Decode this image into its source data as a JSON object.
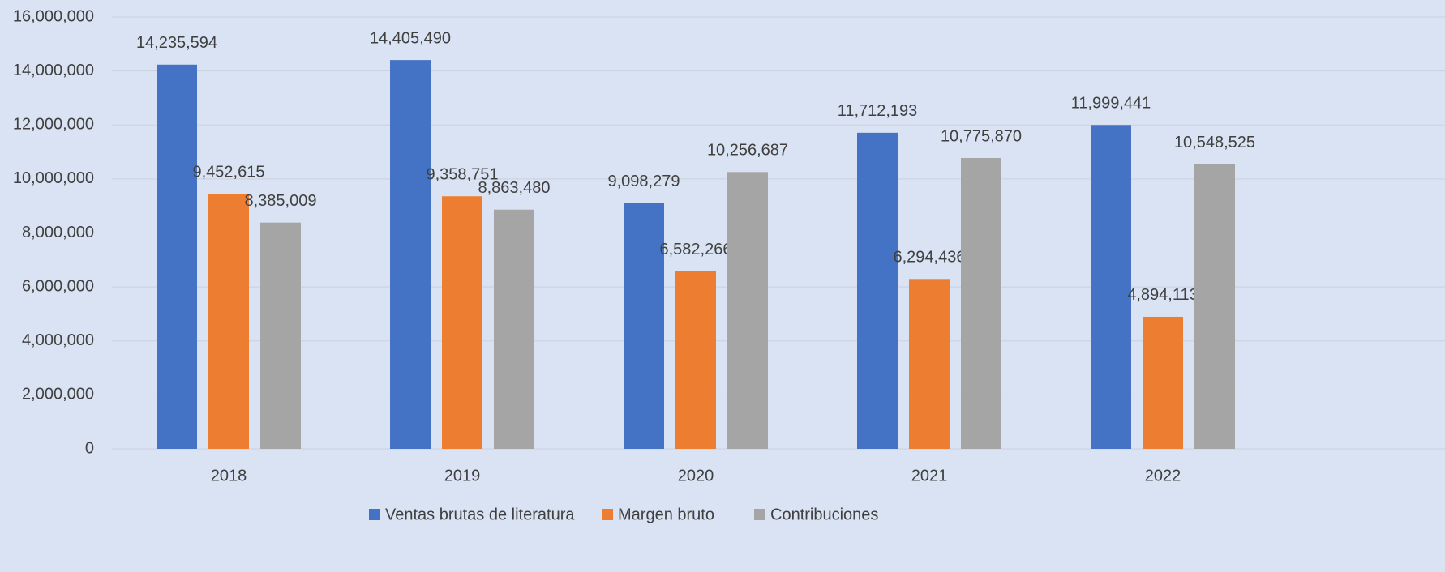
{
  "chart_data": {
    "type": "bar",
    "categories": [
      "2018",
      "2019",
      "2020",
      "2021",
      "2022"
    ],
    "series": [
      {
        "name": "Ventas brutas de literatura",
        "color": "#4472c4",
        "values": [
          14235594,
          14405490,
          9098279,
          11712193,
          11999441
        ],
        "value_labels": [
          "14,235,594",
          "14,405,490",
          "9,098,279",
          "11,712,193",
          "11,999,441"
        ]
      },
      {
        "name": "Margen bruto",
        "color": "#ed7d31",
        "values": [
          9452615,
          9358751,
          6582266,
          6294436,
          4894113
        ],
        "value_labels": [
          "9,452,615",
          "9,358,751",
          "6,582,266",
          "6,294,436",
          "4,894,113"
        ]
      },
      {
        "name": "Contribuciones",
        "color": "#a5a5a5",
        "values": [
          8385009,
          8863480,
          10256687,
          10775870,
          10548525
        ],
        "value_labels": [
          "8,385,009",
          "8,863,480",
          "10,256,687",
          "10,775,870",
          "10,548,525"
        ]
      }
    ],
    "ylim": [
      0,
      16000000
    ],
    "yticks": [
      0,
      {
        "value": 2000000,
        "label": "2,000,000"
      },
      {
        "value": 4000000,
        "label": "4,000,000"
      },
      {
        "value": 6000000,
        "label": "6,000,000"
      },
      {
        "value": 8000000,
        "label": "8,000,000"
      },
      {
        "value": 10000000,
        "label": "10,000,000"
      },
      {
        "value": 12000000,
        "label": "12,000,000"
      },
      {
        "value": 14000000,
        "label": "14,000,000"
      },
      {
        "value": 16000000,
        "label": "16,000,000"
      }
    ],
    "grid": true,
    "legend": "bottom"
  }
}
